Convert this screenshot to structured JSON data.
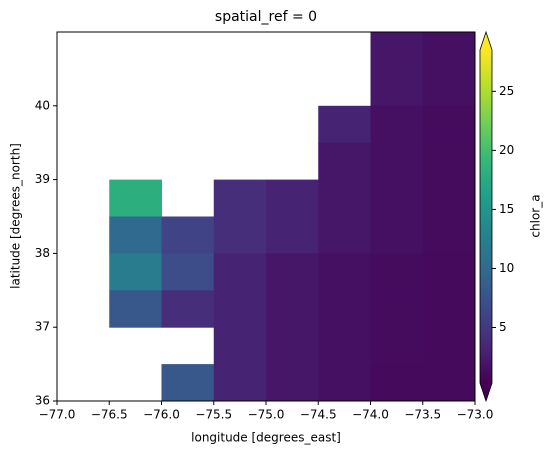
{
  "chart_data": {
    "type": "heatmap",
    "title": "spatial_ref = 0",
    "x_label": "longitude [degrees_east]",
    "y_label": "latitude [degrees_north]",
    "colorbar_label": "chlor_a",
    "xlim": [
      -77,
      -73
    ],
    "ylim": [
      36,
      41
    ],
    "xticks": [
      {
        "value": -77,
        "label": "−77.0"
      },
      {
        "value": -76.5,
        "label": "−76.5"
      },
      {
        "value": -76,
        "label": "−76.0"
      },
      {
        "value": -75.5,
        "label": "−75.5"
      },
      {
        "value": -75,
        "label": "−75.0"
      },
      {
        "value": -74.5,
        "label": "−74.5"
      },
      {
        "value": -74,
        "label": "−74.0"
      },
      {
        "value": -73.5,
        "label": "−73.5"
      },
      {
        "value": -73,
        "label": "−73.0"
      }
    ],
    "yticks": [
      36,
      37,
      38,
      39,
      40
    ],
    "clim": [
      0.3,
      28.5
    ],
    "cticks": [
      5,
      10,
      15,
      20,
      25
    ],
    "colors": [
      "#440154",
      "#482878",
      "#3e4989",
      "#31688e",
      "#26828e",
      "#1f9e89",
      "#35b779",
      "#6ece58",
      "#b5de2b",
      "#fde725"
    ],
    "z": [
      [
        null,
        null,
        null,
        null,
        null,
        null,
        2,
        1.5
      ],
      [
        null,
        null,
        null,
        null,
        null,
        null,
        2,
        1.5
      ],
      [
        null,
        null,
        null,
        null,
        null,
        3,
        1.5,
        1.2
      ],
      [
        null,
        null,
        null,
        null,
        null,
        2,
        1.5,
        1.2
      ],
      [
        null,
        18,
        null,
        4,
        3,
        2,
        1.5,
        1.2
      ],
      [
        null,
        10,
        6,
        4,
        3,
        2,
        1.5,
        1.2
      ],
      [
        null,
        12,
        7,
        3,
        2,
        1.5,
        1.2,
        1
      ],
      [
        null,
        8,
        4,
        3,
        2,
        1.5,
        1.2,
        1
      ],
      [
        null,
        null,
        null,
        3,
        2,
        1.5,
        1.2,
        1
      ],
      [
        null,
        null,
        8,
        3,
        2,
        1.5,
        1,
        1
      ]
    ]
  }
}
